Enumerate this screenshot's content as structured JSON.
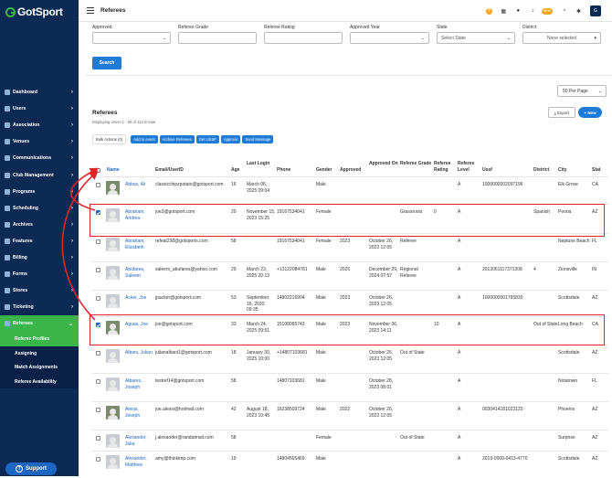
{
  "app": {
    "brand": "GotSport",
    "page_title": "Referees"
  },
  "topbar": {
    "badge": "NEW",
    "avatar_initial": "G"
  },
  "sidebar": {
    "items": [
      {
        "label": "Dashboard",
        "icon": "dashboard-icon"
      },
      {
        "label": "Users",
        "icon": "users-icon"
      },
      {
        "label": "Association",
        "icon": "association-icon"
      },
      {
        "label": "Venues",
        "icon": "venues-icon"
      },
      {
        "label": "Communications",
        "icon": "communications-icon"
      },
      {
        "label": "Club Management",
        "icon": "club-icon"
      },
      {
        "label": "Programs",
        "icon": "programs-icon"
      },
      {
        "label": "Scheduling",
        "icon": "scheduling-icon"
      },
      {
        "label": "Archives",
        "icon": "archives-icon"
      },
      {
        "label": "Features",
        "icon": "features-icon"
      },
      {
        "label": "Billing",
        "icon": "billing-icon"
      },
      {
        "label": "Forms",
        "icon": "forms-icon"
      },
      {
        "label": "Stores",
        "icon": "stores-icon"
      },
      {
        "label": "Ticketing",
        "icon": "ticketing-icon"
      },
      {
        "label": "Referees",
        "icon": "referees-icon"
      }
    ],
    "sub_items": [
      "Referee Profiles",
      "Assigning",
      "Match Assignments",
      "Referee Availability"
    ],
    "support": "Support"
  },
  "filters": {
    "approved": {
      "label": "Approved",
      "value": ""
    },
    "referee_grade": {
      "label": "Referee Grade",
      "value": ""
    },
    "referee_rating": {
      "label": "Referee Rating",
      "value": ""
    },
    "approved_year": {
      "label": "Approved Year",
      "value": ""
    },
    "state": {
      "label": "State",
      "value": "Select State"
    },
    "district": {
      "label": "District",
      "value": "None selected"
    },
    "search_label": "Search"
  },
  "per_page": "50 Per Page",
  "section": {
    "title": "Referees",
    "subtitle": "Displaying Users 1 - 50 of 113 in total",
    "export": "Export",
    "new": "New"
  },
  "bulk": {
    "label": "Bulk Actions (0)",
    "buttons": [
      "Add to event",
      "Archive Referees",
      "Get USSF",
      "Approve",
      "Send Message"
    ]
  },
  "columns": [
    "Name",
    "Email/UserID",
    "Age",
    "Last Login",
    "Phone",
    "Gender",
    "Approved",
    "Approved On",
    "Referee Grade",
    "Referee Rating",
    "Referee Level",
    "Ussf",
    "District",
    "City",
    "Stat"
  ],
  "rows": [
    {
      "name": "Abbas, Ali",
      "email": "classicchipzpotato@gotsport.com",
      "age": "16",
      "last_login": "March 06, 2025 09:04",
      "phone": "",
      "gender": "Male",
      "approved": "",
      "approved_on": "",
      "grade": "",
      "rating": "",
      "level": "A",
      "ussf": "1000000002097196",
      "district": "",
      "city": "Elk Grove",
      "state": "CA",
      "checked": false,
      "photo": true
    },
    {
      "name": "Abraham, Andrea",
      "email": "joe3@gotsport.com",
      "age": "20",
      "last_login": "November 15, 2023 15:25",
      "phone": "19167534041",
      "gender": "Female",
      "approved": "",
      "approved_on": "",
      "grade": "Grassroots",
      "rating": "0",
      "level": "A",
      "ussf": "",
      "district": "Spanish",
      "city": "Peoria",
      "state": "AZ",
      "checked": true,
      "photo": false
    },
    {
      "name": "Abraham, Elizabeth",
      "email": "refeat298@gotsports.com",
      "age": "58",
      "last_login": "",
      "phone": "19167534041",
      "gender": "Female",
      "approved": "2023",
      "approved_on": "October 26, 2023 12:05",
      "grade": "Referee",
      "rating": "",
      "level": "A",
      "ussf": "",
      "district": "",
      "city": "Neptune Beach",
      "state": "FL",
      "checked": false,
      "photo": false
    },
    {
      "name": "Abufares, Saleem",
      "email": "saleem_abufares@yahoo.com",
      "age": "29",
      "last_login": "March 23, 2025 20:13",
      "phone": "+13122084781",
      "gender": "Male",
      "approved": "2025",
      "approved_on": "December 29, 2024 07:57",
      "grade": "Regional Referee",
      "rating": "",
      "level": "A",
      "ussf": "2013061117371308",
      "district": "4",
      "city": "Zionsville",
      "state": "IN",
      "checked": false,
      "photo": false
    },
    {
      "name": "Acker, Joe",
      "email": "jpacker@gotsport.com",
      "age": "53",
      "last_login": "September 16, 2020 09:35",
      "phone": "14802216904",
      "gender": "Male",
      "approved": "2023",
      "approved_on": "October 26, 2023 12:05",
      "grade": "",
      "rating": "",
      "level": "A",
      "ussf": "1000000001765830",
      "district": "",
      "city": "Scottsdale",
      "state": "AZ",
      "checked": false,
      "photo": false
    },
    {
      "name": "Aguas, Joe",
      "email": "joe@gotsport.com",
      "age": "33",
      "last_login": "March 24, 2025 09:51",
      "phone": "15108095743",
      "gender": "Male",
      "approved": "2023",
      "approved_on": "November 06, 2023 14:11",
      "grade": "",
      "rating": "10",
      "level": "A",
      "ussf": "",
      "district": "Out of State",
      "city": "Long Beach",
      "state": "CA",
      "checked": true,
      "photo": true
    },
    {
      "name": "Albani, Julian",
      "email": "julianalbani1@gotsport.com",
      "age": "18",
      "last_login": "January 30, 2025 10:00",
      "phone": "+14807103681",
      "gender": "Male",
      "approved": "",
      "approved_on": "October 26, 2023 12:05",
      "grade": "Out of State",
      "rating": "",
      "level": "A",
      "ussf": "",
      "district": "",
      "city": "Scottsdale",
      "state": "AZ",
      "checked": false,
      "photo": false
    },
    {
      "name": "Albares, Joseph",
      "email": "testref14@gotsport.com",
      "age": "58",
      "last_login": "",
      "phone": "14807103681",
      "gender": "Male",
      "approved": "",
      "approved_on": "October 28, 2023 08:01",
      "grade": "",
      "rating": "",
      "level": "A",
      "ussf": "",
      "district": "",
      "city": "Notatown",
      "state": "FL",
      "checked": false,
      "photo": false
    },
    {
      "name": "Alessi, Joseph",
      "email": "joe.alessi@hotmail.com",
      "age": "42",
      "last_login": "August 18, 2023 10:45",
      "phone": "16238509724",
      "gender": "Male",
      "approved": "2022",
      "approved_on": "October 26, 2023 12:05",
      "grade": "",
      "rating": "",
      "level": "A",
      "ussf": "0030414181023120",
      "district": "",
      "city": "Phoenix",
      "state": "AZ",
      "checked": false,
      "photo": true
    },
    {
      "name": "Alexander, Julia",
      "email": "j.alexander@randatmail.com",
      "age": "58",
      "last_login": "",
      "phone": "",
      "gender": "Female",
      "approved": "",
      "approved_on": "",
      "grade": "Out of State",
      "rating": "",
      "level": "A",
      "ussf": "",
      "district": "",
      "city": "Surprise",
      "state": "AZ",
      "checked": false,
      "photo": false
    },
    {
      "name": "Alexander, Matthew",
      "email": "amy@thinkimp.com",
      "age": "19",
      "last_login": "",
      "phone": "14804505469",
      "gender": "Male",
      "approved": "",
      "approved_on": "",
      "grade": "",
      "rating": "",
      "level": "A",
      "ussf": "2019-0000-0413-4770",
      "district": "",
      "city": "Scottsdale",
      "state": "AZ",
      "checked": false,
      "photo": false
    }
  ]
}
